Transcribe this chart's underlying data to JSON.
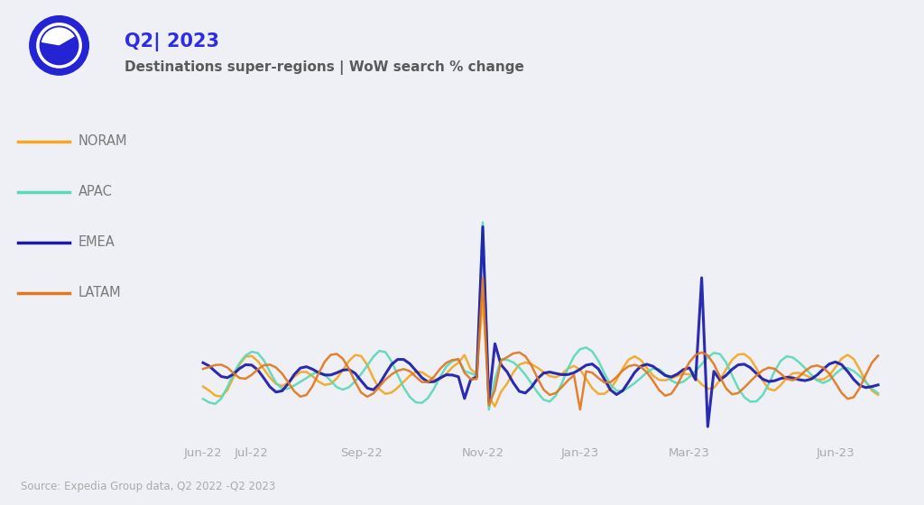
{
  "title1": "Q2| 2023",
  "title2": "Destinations super-regions | WoW search % change",
  "source": "Source: Expedia Group data, Q2 2022 -Q2 2023",
  "background_color": "#eef0f5",
  "series_colors": {
    "NORAM": "#f5a623",
    "APAC": "#5dd9b8",
    "EMEA": "#1a1aaa",
    "LATAM": "#e07820"
  },
  "line_widths": {
    "NORAM": 1.8,
    "APAC": 1.8,
    "EMEA": 2.2,
    "LATAM": 1.8
  },
  "x_tick_labels": [
    "Jun-22",
    "Jul-22",
    "Sep-22",
    "Nov-22",
    "Jan-23",
    "Mar-23",
    "Jun-23"
  ],
  "title1_color": "#2c2ce8",
  "title2_color": "#5a5a5a",
  "source_color": "#aaaaaa",
  "legend_labels": [
    "NORAM",
    "APAC",
    "EMEA",
    "LATAM"
  ],
  "icon_color": "#2424d4"
}
